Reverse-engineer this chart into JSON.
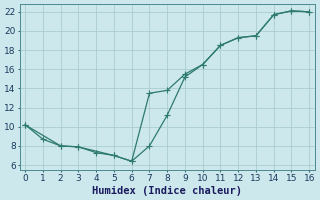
{
  "line1_x": [
    0,
    1,
    2,
    3,
    4,
    5,
    6,
    7,
    8,
    9,
    10,
    11,
    12,
    13,
    14,
    15,
    16
  ],
  "line1_y": [
    10.2,
    8.7,
    8.0,
    7.9,
    7.3,
    7.0,
    6.4,
    8.0,
    11.2,
    15.2,
    16.5,
    18.5,
    19.3,
    19.5,
    21.7,
    22.1,
    22.0
  ],
  "line2_x": [
    0,
    2,
    3,
    5,
    6,
    7,
    8,
    9,
    10,
    11,
    12,
    13,
    14,
    15,
    16
  ],
  "line2_y": [
    10.2,
    8.0,
    7.9,
    7.0,
    6.4,
    13.5,
    13.8,
    15.5,
    16.5,
    18.5,
    19.3,
    19.5,
    21.7,
    22.1,
    22.0
  ],
  "line_color": "#2d7a6e",
  "bg_color": "#cde8ec",
  "grid_color": "#aacdd2",
  "xlabel": "Humidex (Indice chaleur)",
  "xlabel_fontsize": 7.5,
  "xlim": [
    -0.3,
    16.3
  ],
  "ylim": [
    5.5,
    22.8
  ],
  "xticks": [
    0,
    1,
    2,
    3,
    4,
    5,
    6,
    7,
    8,
    9,
    10,
    11,
    12,
    13,
    14,
    15,
    16
  ],
  "yticks": [
    6,
    8,
    10,
    12,
    14,
    16,
    18,
    20,
    22
  ],
  "tick_fontsize": 6.5,
  "marker_size": 2.5,
  "linewidth": 0.9
}
